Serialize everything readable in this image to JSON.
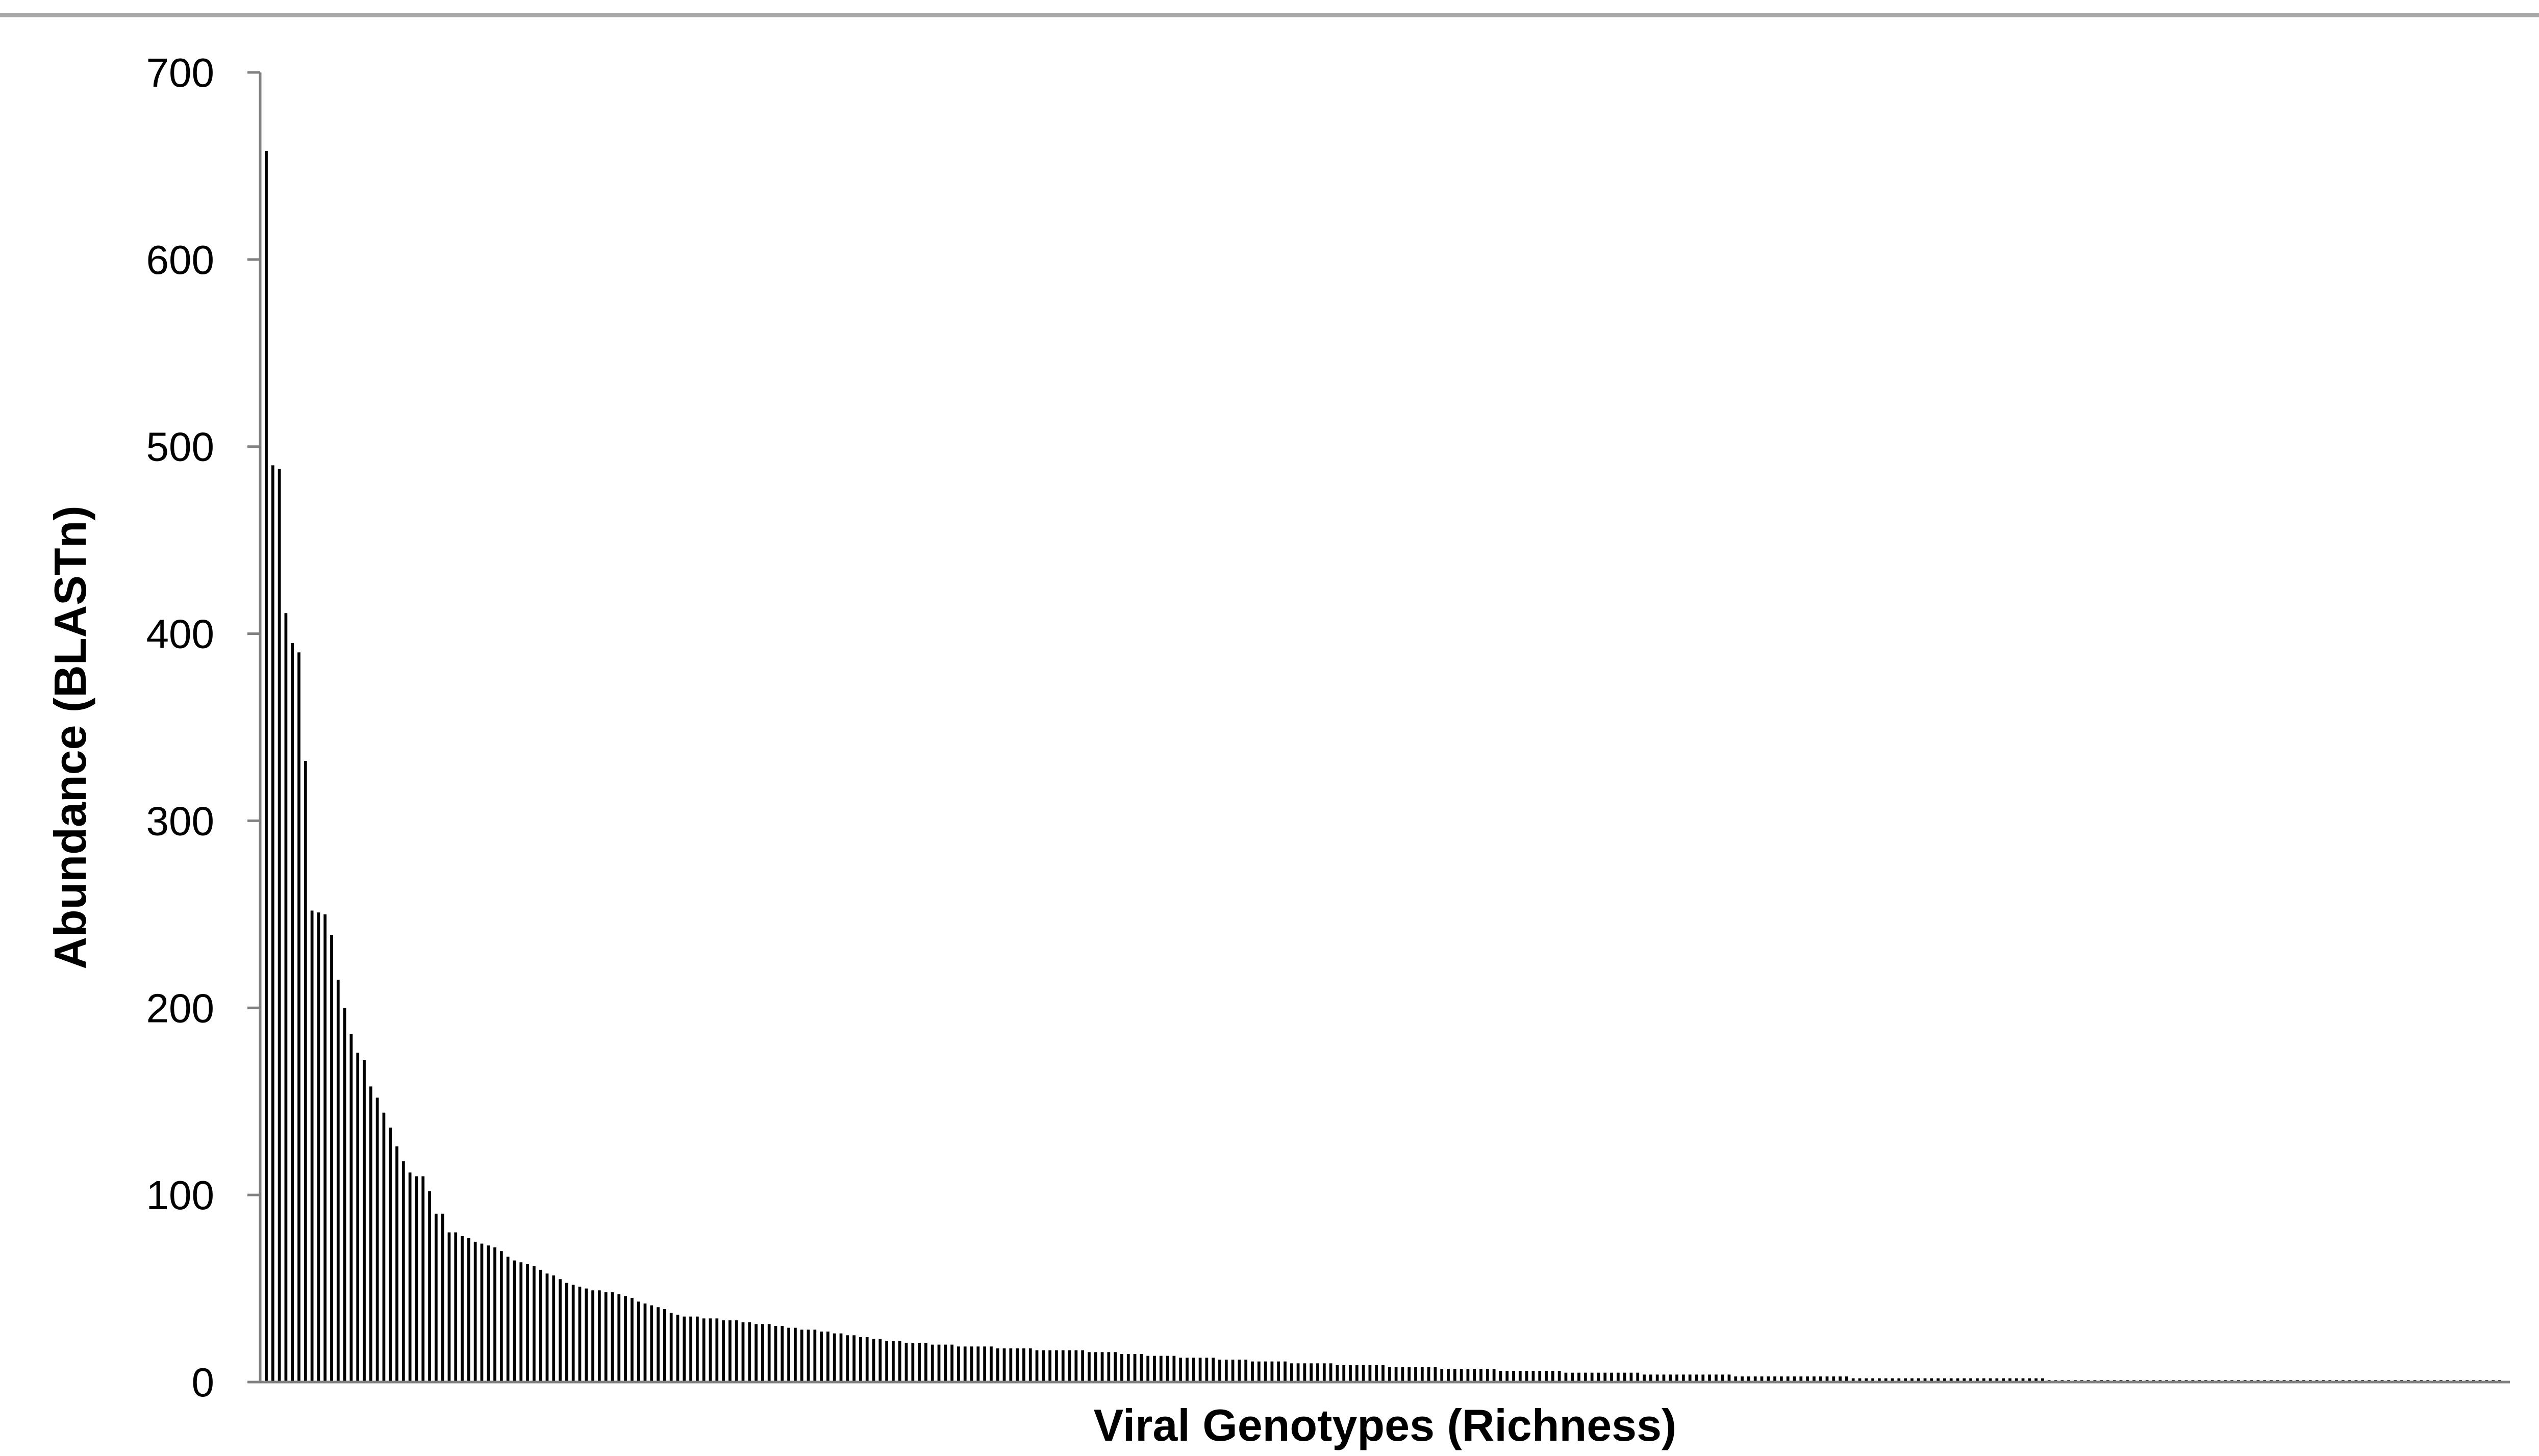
{
  "chart_data": {
    "type": "bar",
    "title": "",
    "xlabel": "Viral Genotypes (Richness)",
    "ylabel": "Abundance (BLASTn)",
    "ylim": [
      0,
      700
    ],
    "yticks": [
      "0",
      "100",
      "200",
      "300",
      "400",
      "500",
      "600",
      "700"
    ],
    "grid": false,
    "legend": "none",
    "colors": {
      "bars": "#000000",
      "axis": "#808080",
      "top_rule": "#a6a6a6",
      "text": "#000000"
    },
    "values": [
      658,
      490,
      488,
      411,
      395,
      390,
      332,
      252,
      251,
      250,
      239,
      215,
      200,
      186,
      176,
      172,
      158,
      152,
      144,
      136,
      126,
      118,
      112,
      110,
      110,
      102,
      90,
      90,
      80,
      80,
      78,
      77,
      75,
      74,
      73,
      72,
      70,
      67,
      65,
      64,
      63,
      62,
      60,
      58,
      57,
      55,
      53,
      52,
      51,
      50,
      49,
      49,
      48,
      48,
      47,
      46,
      45,
      43,
      42,
      41,
      40,
      39,
      37,
      36,
      35,
      35,
      35,
      34,
      34,
      34,
      33,
      33,
      33,
      32,
      32,
      31,
      31,
      31,
      30,
      30,
      29,
      29,
      28,
      28,
      28,
      27,
      27,
      26,
      26,
      25,
      25,
      24,
      24,
      23,
      23,
      22,
      22,
      22,
      21,
      21,
      21,
      21,
      20,
      20,
      20,
      20,
      19,
      19,
      19,
      19,
      19,
      19,
      18,
      18,
      18,
      18,
      18,
      18,
      17,
      17,
      17,
      17,
      17,
      17,
      17,
      17,
      16,
      16,
      16,
      16,
      16,
      15,
      15,
      15,
      15,
      14,
      14,
      14,
      14,
      14,
      13,
      13,
      13,
      13,
      13,
      13,
      12,
      12,
      12,
      12,
      12,
      11,
      11,
      11,
      11,
      11,
      11,
      10,
      10,
      10,
      10,
      10,
      10,
      10,
      9,
      9,
      9,
      9,
      9,
      9,
      9,
      9,
      8,
      8,
      8,
      8,
      8,
      8,
      8,
      8,
      7,
      7,
      7,
      7,
      7,
      7,
      7,
      7,
      7,
      6,
      6,
      6,
      6,
      6,
      6,
      6,
      6,
      6,
      6,
      5,
      5,
      5,
      5,
      5,
      5,
      5,
      5,
      5,
      5,
      5,
      5,
      4,
      4,
      4,
      4,
      4,
      4,
      4,
      4,
      4,
      4,
      4,
      4,
      4,
      4,
      3,
      3,
      3,
      3,
      3,
      3,
      3,
      3,
      3,
      3,
      3,
      3,
      3,
      3,
      3,
      3,
      3,
      3,
      2,
      2,
      2,
      2,
      2,
      2,
      2,
      2,
      2,
      2,
      2,
      2,
      2,
      2,
      2,
      2,
      2,
      2,
      2,
      2,
      2,
      2,
      2,
      2,
      2,
      2,
      2,
      2,
      2,
      2,
      1,
      1,
      1,
      1,
      1,
      1,
      1,
      1,
      1,
      1,
      1,
      1,
      1,
      1,
      1,
      1,
      1,
      1,
      1,
      1,
      1,
      1,
      1,
      1,
      1,
      1,
      1,
      1,
      1,
      1,
      1,
      1,
      1,
      1,
      1,
      1,
      1,
      1,
      1,
      1,
      1,
      1,
      1,
      1,
      1,
      1,
      1,
      1,
      1,
      1,
      1,
      1,
      1,
      1,
      1,
      1,
      1,
      1,
      1,
      1,
      1,
      1,
      1,
      1,
      1,
      1,
      1,
      1,
      1,
      1
    ]
  }
}
